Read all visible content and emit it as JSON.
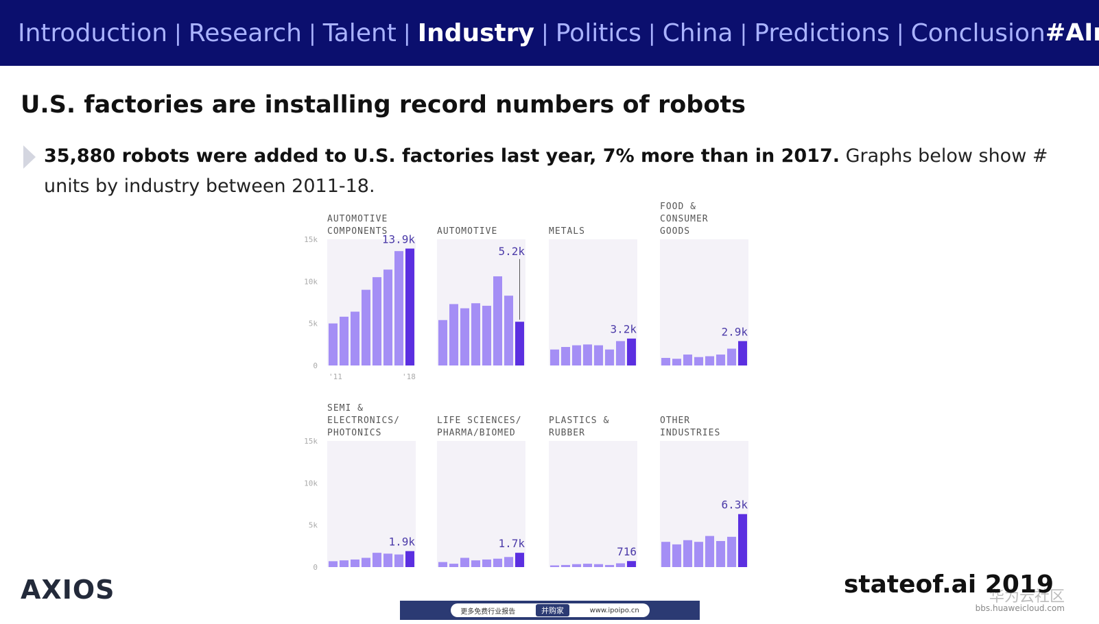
{
  "nav": {
    "items": [
      {
        "label": "Introduction",
        "active": false
      },
      {
        "label": "Research",
        "active": false
      },
      {
        "label": "Talent",
        "active": false
      },
      {
        "label": "Industry",
        "active": true
      },
      {
        "label": "Politics",
        "active": false
      },
      {
        "label": "China",
        "active": false
      },
      {
        "label": "Predictions",
        "active": false
      },
      {
        "label": "Conclusion",
        "active": false
      }
    ],
    "separator": "|",
    "hashtag": "#AIreport"
  },
  "slide": {
    "title": "U.S. factories are installing record numbers of robots",
    "bullet_bold": "35,880 robots were added to U.S. factories last year, 7% more than in 2017.",
    "bullet_rest": " Graphs below show # units by industry between 2011-18."
  },
  "colors": {
    "nav_bg": "#0b0f6e",
    "nav_text": "#aab3ff",
    "bar_light": "#a48ef5",
    "bar_dark": "#5b2fe0",
    "panel_bg": "#f4f2f8",
    "label_text": "#555555",
    "value_text": "#4b3aa8"
  },
  "chart_data": {
    "type": "bar",
    "x_years": [
      "2011",
      "2012",
      "2013",
      "2014",
      "2015",
      "2016",
      "2017",
      "2018"
    ],
    "x_tick_labels": [
      "'11",
      "'18"
    ],
    "y_ticks": [
      "0",
      "5k",
      "10k",
      "15k"
    ],
    "ylim": [
      0,
      15000
    ],
    "panels": [
      {
        "name": "AUTOMOTIVE COMPONENTS",
        "name_lines": [
          "AUTOMOTIVE",
          "COMPONENTS"
        ],
        "values": [
          5000,
          5800,
          6400,
          9000,
          10500,
          11400,
          13600,
          13900
        ],
        "value_label": "13.9k"
      },
      {
        "name": "AUTOMOTIVE",
        "name_lines": [
          "AUTOMOTIVE"
        ],
        "values": [
          5400,
          7300,
          6800,
          7400,
          7100,
          10600,
          8300,
          5200
        ],
        "value_label": "5.2k"
      },
      {
        "name": "METALS",
        "name_lines": [
          "METALS"
        ],
        "values": [
          1900,
          2200,
          2400,
          2500,
          2400,
          1900,
          2900,
          3200
        ],
        "value_label": "3.2k"
      },
      {
        "name": "FOOD & CONSUMER GOODS",
        "name_lines": [
          "FOOD &",
          "CONSUMER",
          "GOODS"
        ],
        "values": [
          900,
          800,
          1300,
          1000,
          1100,
          1300,
          2000,
          2900
        ],
        "value_label": "2.9k"
      },
      {
        "name": "SEMI & ELECTRONICS/PHOTONICS",
        "name_lines": [
          "SEMI &",
          "ELECTRONICS/",
          "PHOTONICS"
        ],
        "values": [
          700,
          800,
          900,
          1100,
          1700,
          1600,
          1500,
          1900
        ],
        "value_label": "1.9k"
      },
      {
        "name": "LIFE SCIENCES/PHARMA/BIOMED",
        "name_lines": [
          "LIFE SCIENCES/",
          "PHARMA/BIOMED"
        ],
        "values": [
          600,
          400,
          1100,
          800,
          900,
          1000,
          1200,
          1700
        ],
        "value_label": "1.7k"
      },
      {
        "name": "PLASTICS & RUBBER",
        "name_lines": [
          "PLASTICS &",
          "RUBBER"
        ],
        "values": [
          200,
          250,
          350,
          400,
          350,
          250,
          450,
          716
        ],
        "value_label": "716"
      },
      {
        "name": "OTHER INDUSTRIES",
        "name_lines": [
          "OTHER",
          "INDUSTRIES"
        ],
        "values": [
          3000,
          2700,
          3200,
          3000,
          3700,
          3100,
          3600,
          6300
        ],
        "value_label": "6.3k"
      }
    ]
  },
  "footer": {
    "logo": "AXIOS",
    "source": "stateof.ai 2019",
    "watermark_cn": "华为云社区",
    "watermark_url": "bbs.huaweicloud.com",
    "banner_left": "更多免费行业报告",
    "banner_pill": "并购家",
    "banner_right": "www.ipoipo.cn"
  }
}
